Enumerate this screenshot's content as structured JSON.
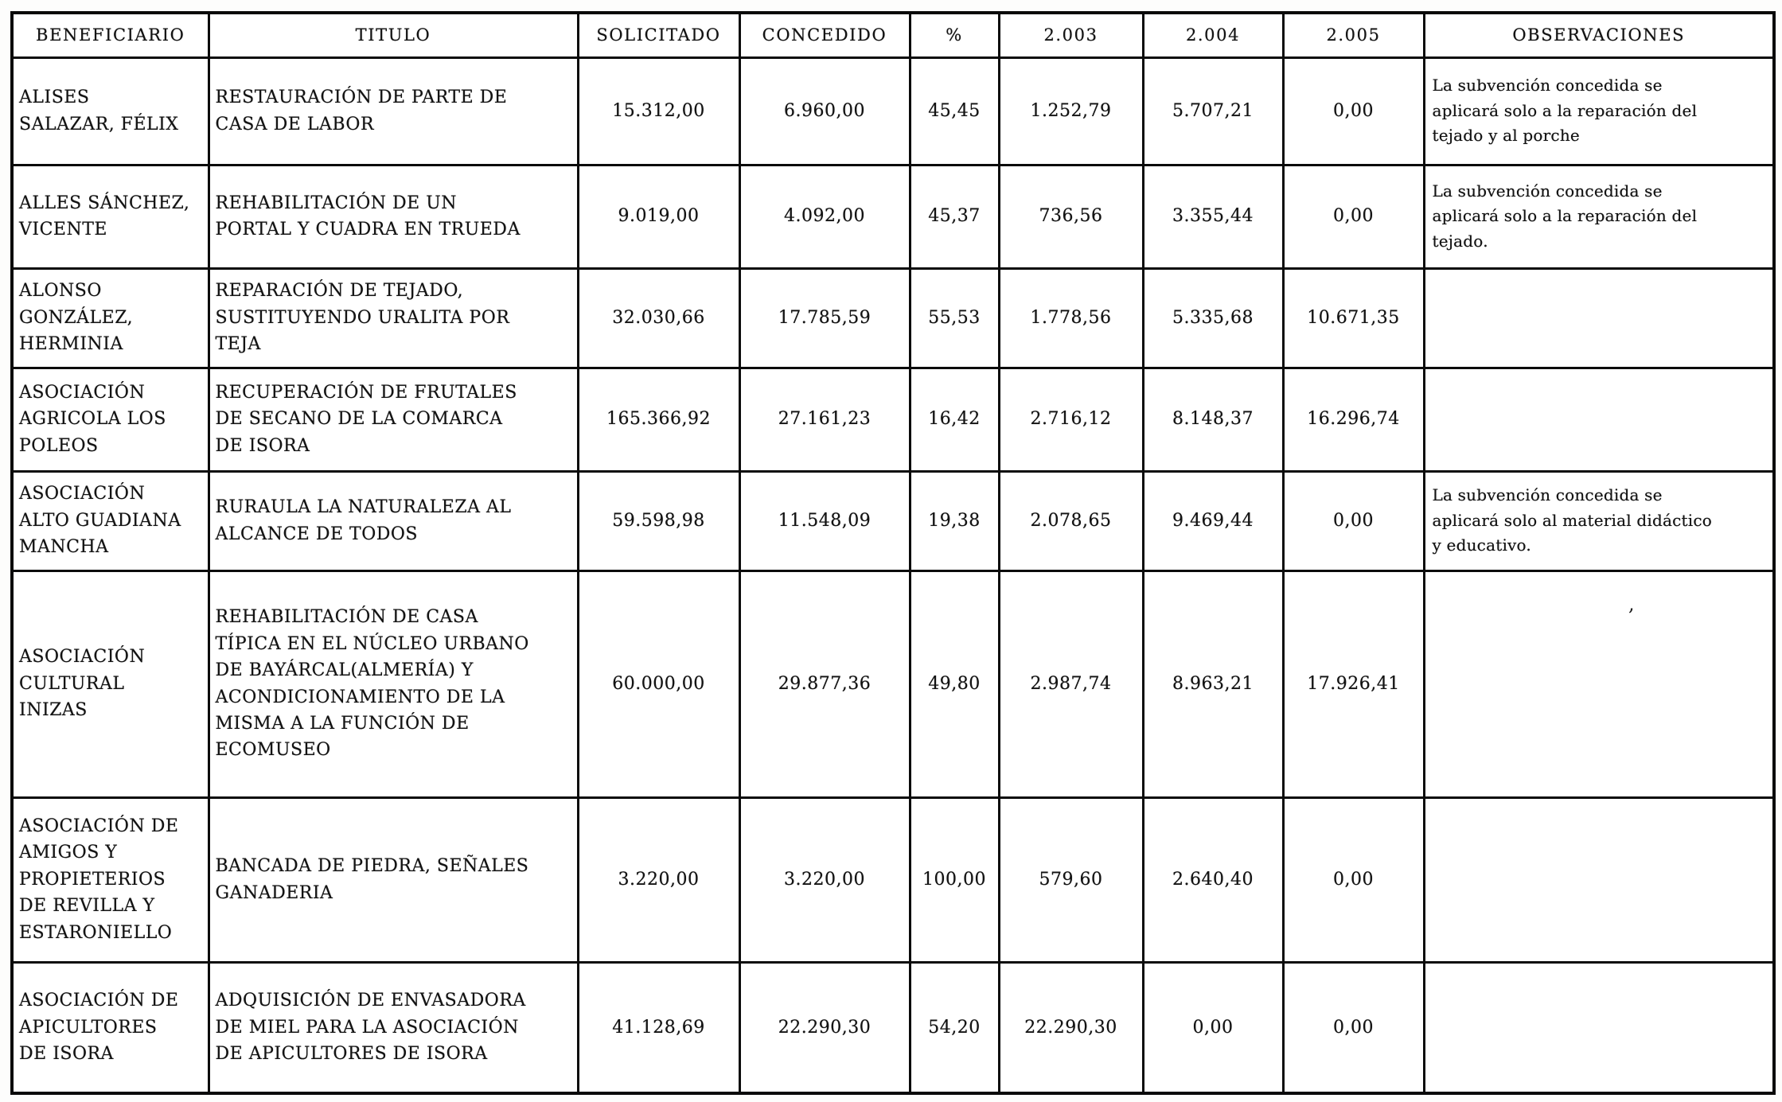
{
  "colors": {
    "paper": "#ffffff",
    "ink": "#131313",
    "border": "#0b0b0b"
  },
  "table": {
    "headers": [
      "BENEFICIARIO",
      "TITULO",
      "SOLICITADO",
      "CONCEDIDO",
      "%",
      "2.003",
      "2.004",
      "2.005",
      "OBSERVACIONES"
    ],
    "rows": [
      [
        "ALISES\nSALAZAR, FÉLIX",
        "RESTAURACIÓN DE PARTE DE\nCASA DE LABOR",
        "15.312,00",
        "6.960,00",
        "45,45",
        "1.252,79",
        "5.707,21",
        "0,00",
        "La subvención concedida se\naplicará solo a la reparación del\ntejado y al porche"
      ],
      [
        "ALLES SÁNCHEZ,\nVICENTE",
        "REHABILITACIÓN DE UN\nPORTAL Y CUADRA EN TRUEDA",
        "9.019,00",
        "4.092,00",
        "45,37",
        "736,56",
        "3.355,44",
        "0,00",
        "La subvención concedida se\naplicará solo a la reparación del\ntejado."
      ],
      [
        "ALONSO\nGONZÁLEZ,\nHERMINIA",
        "REPARACIÓN DE TEJADO,\nSUSTITUYENDO URALITA POR\nTEJA",
        "32.030,66",
        "17.785,59",
        "55,53",
        "1.778,56",
        "5.335,68",
        "10.671,35",
        ""
      ],
      [
        "ASOCIACIÓN\nAGRICOLA LOS\nPOLEOS",
        "RECUPERACIÓN DE FRUTALES\nDE SECANO DE LA COMARCA\nDE ISORA",
        "165.366,92",
        "27.161,23",
        "16,42",
        "2.716,12",
        "8.148,37",
        "16.296,74",
        ""
      ],
      [
        "ASOCIACIÓN\nALTO GUADIANA\nMANCHA",
        "RURAULA LA NATURALEZA AL\nALCANCE DE TODOS",
        "59.598,98",
        "11.548,09",
        "19,38",
        "2.078,65",
        "9.469,44",
        "0,00",
        "La subvención concedida se\naplicará solo al material didáctico\ny educativo."
      ],
      [
        "ASOCIACIÓN\nCULTURAL\nINIZAS",
        "REHABILITACIÓN DE CASA\nTÍPICA EN EL NÚCLEO URBANO\nDE BAYÁRCAL(ALMERÍA) Y\nACONDICIONAMIENTO DE LA\nMISMA A LA FUNCIÓN DE\nECOMUSEO",
        "60.000,00",
        "29.877,36",
        "49,80",
        "2.987,74",
        "8.963,21",
        "17.926,41",
        ""
      ],
      [
        "ASOCIACIÓN DE\nAMIGOS Y\nPROPIETERIOS\nDE REVILLA Y\nESTARONIELLO",
        "BANCADA DE PIEDRA, SEÑALES\nGANADERIA",
        "3.220,00",
        "3.220,00",
        "100,00",
        "579,60",
        "2.640,40",
        "0,00",
        ""
      ],
      [
        "ASOCIACIÓN DE\nAPICULTORES\nDE ISORA",
        "ADQUISICIÓN DE ENVASADORA\nDE MIEL PARA LA ASOCIACIÓN\nDE APICULTORES DE ISORA",
        "41.128,69",
        "22.290,30",
        "54,20",
        "22.290,30",
        "0,00",
        "0,00",
        ""
      ]
    ]
  },
  "artifacts": {
    "stray_mark": ","
  }
}
